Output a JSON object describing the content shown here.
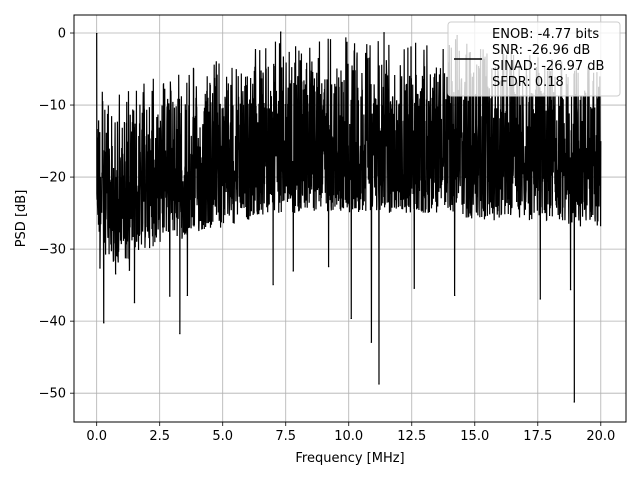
{
  "chart_data": {
    "type": "line",
    "title": "",
    "xlabel": "Frequency [MHz]",
    "ylabel": "PSD [dB]",
    "xlim": [
      -0.9,
      21.0
    ],
    "ylim": [
      -54,
      2.5
    ],
    "xticks": [
      0.0,
      2.5,
      5.0,
      7.5,
      10.0,
      12.5,
      15.0,
      17.5,
      20.0
    ],
    "xtick_labels": [
      "0.0",
      "2.5",
      "5.0",
      "7.5",
      "10.0",
      "12.5",
      "15.0",
      "17.5",
      "20.0"
    ],
    "yticks": [
      0,
      -10,
      -20,
      -30,
      -40,
      -50
    ],
    "ytick_labels": [
      "0",
      "−10",
      "−20",
      "−30",
      "−40",
      "−50"
    ],
    "grid": true,
    "legend_placement": "upper-right",
    "legend_entries": [
      "ENOB: -4.77 bits",
      "SNR: -26.96 dB",
      "SINAD: -26.97 dB",
      "SFDR: 0.18"
    ],
    "series": [
      {
        "color": "#000000",
        "envelope": {
          "x": [
            0.0,
            0.5,
            1.0,
            2.0,
            3.0,
            4.0,
            5.0,
            6.0,
            7.0,
            8.0,
            9.0,
            10.0,
            11.0,
            12.0,
            13.0,
            14.0,
            15.0,
            16.0,
            17.0,
            18.0,
            19.0,
            20.0
          ],
          "upper": [
            -7,
            -11,
            -10,
            -9,
            -8,
            -7,
            -6,
            -5,
            -3,
            -3,
            -3,
            -3,
            -3,
            -4,
            -3,
            -3,
            -4,
            -4,
            -5,
            -6,
            -7,
            -7
          ],
          "lower": [
            -28,
            -32,
            -32,
            -30,
            -29,
            -28,
            -27,
            -26,
            -25,
            -25,
            -25,
            -25,
            -25,
            -25,
            -25,
            -25,
            -26,
            -26,
            -26,
            -26,
            -27,
            -27
          ]
        },
        "peaks": [
          {
            "x": 0.0,
            "y": 0
          },
          {
            "x": 7.3,
            "y": 0.2
          },
          {
            "x": 11.4,
            "y": 0.1
          },
          {
            "x": 14.3,
            "y": -0.3
          }
        ],
        "dips": [
          {
            "x": 0.13,
            "y": -32.7
          },
          {
            "x": 0.28,
            "y": -40.3
          },
          {
            "x": 0.75,
            "y": -33.5
          },
          {
            "x": 1.3,
            "y": -33.0
          },
          {
            "x": 1.5,
            "y": -37.5
          },
          {
            "x": 2.9,
            "y": -36.6
          },
          {
            "x": 3.3,
            "y": -41.8
          },
          {
            "x": 3.6,
            "y": -36.5
          },
          {
            "x": 7.0,
            "y": -35.0
          },
          {
            "x": 7.8,
            "y": -33.1
          },
          {
            "x": 9.2,
            "y": -32.5
          },
          {
            "x": 10.1,
            "y": -39.7
          },
          {
            "x": 10.9,
            "y": -43.0
          },
          {
            "x": 11.2,
            "y": -48.8
          },
          {
            "x": 12.6,
            "y": -35.5
          },
          {
            "x": 14.2,
            "y": -36.5
          },
          {
            "x": 17.6,
            "y": -37.0
          },
          {
            "x": 18.8,
            "y": -35.7
          },
          {
            "x": 18.95,
            "y": -51.3
          }
        ]
      }
    ]
  }
}
